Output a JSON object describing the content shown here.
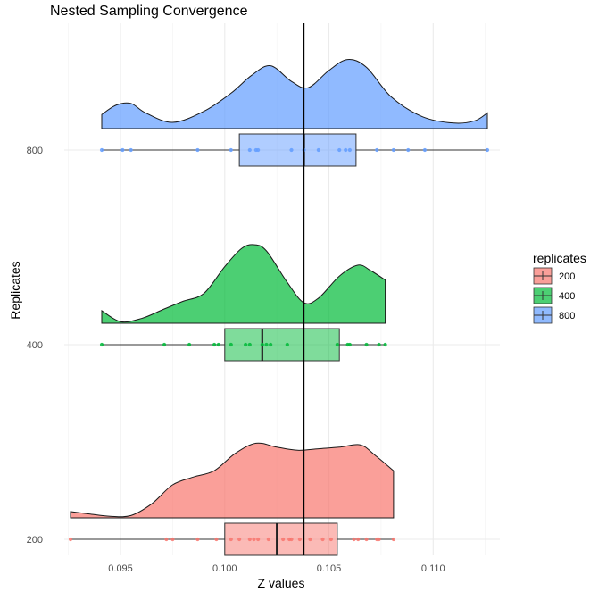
{
  "chart_data": {
    "type": "raincloud",
    "title": "Nested Sampling Convergence",
    "xlabel": "Z values",
    "ylabel": "Replicates",
    "xlim": [
      0.0923,
      0.1132
    ],
    "x_ticks": [
      0.095,
      0.1,
      0.105,
      0.11
    ],
    "x_tick_labels": [
      "0.095",
      "0.100",
      "0.105",
      "0.110"
    ],
    "categories": [
      "200",
      "400",
      "800"
    ],
    "reference_line_x": 0.1038,
    "grid": true,
    "legend": {
      "title": "replicates",
      "position": "right",
      "entries": [
        "200",
        "400",
        "800"
      ]
    },
    "colors": {
      "200": "#F8766D",
      "400": "#00BA38",
      "800": "#619CFF"
    },
    "series": [
      {
        "name": "200",
        "points": [
          0.0926,
          0.0972,
          0.0975,
          0.0987,
          0.0996,
          0.1003,
          0.1007,
          0.1012,
          0.1014,
          0.1016,
          0.1021,
          0.1028,
          0.1031,
          0.1032,
          0.1036,
          0.1041,
          0.1047,
          0.1051,
          0.1062,
          0.1064,
          0.1068,
          0.1073,
          0.1074,
          0.1081
        ],
        "box": {
          "min": 0.0926,
          "q1": 0.1,
          "median": 0.1025,
          "q3": 0.1054,
          "max": 0.1081
        },
        "density": {
          "x": [
            0.0926,
            0.0935,
            0.0945,
            0.0955,
            0.0965,
            0.0975,
            0.0985,
            0.0995,
            0.1005,
            0.1015,
            0.1025,
            0.1035,
            0.1045,
            0.1055,
            0.1065,
            0.1072,
            0.1081
          ],
          "y": [
            0.08,
            0.05,
            0.02,
            0.03,
            0.18,
            0.42,
            0.52,
            0.6,
            0.82,
            0.95,
            0.9,
            0.86,
            0.88,
            0.9,
            0.93,
            0.8,
            0.6
          ]
        }
      },
      {
        "name": "400",
        "points": [
          0.0941,
          0.0971,
          0.0983,
          0.0995,
          0.0997,
          0.1003,
          0.101,
          0.1012,
          0.1018,
          0.102,
          0.1022,
          0.103,
          0.1054,
          0.1059,
          0.106,
          0.1068,
          0.1074,
          0.1077
        ],
        "box": {
          "min": 0.0941,
          "q1": 0.1,
          "median": 0.1018,
          "q3": 0.1055,
          "max": 0.1077
        },
        "density": {
          "x": [
            0.0941,
            0.095,
            0.096,
            0.097,
            0.098,
            0.099,
            0.1,
            0.1008,
            0.1014,
            0.102,
            0.103,
            0.1038,
            0.1045,
            0.1055,
            0.1064,
            0.107,
            0.1077
          ],
          "y": [
            0.16,
            0.02,
            0.06,
            0.17,
            0.28,
            0.38,
            0.72,
            0.95,
            1.0,
            0.92,
            0.52,
            0.26,
            0.32,
            0.6,
            0.74,
            0.67,
            0.55
          ]
        }
      },
      {
        "name": "800",
        "points": [
          0.0941,
          0.0951,
          0.0955,
          0.0987,
          0.1003,
          0.1012,
          0.1015,
          0.1016,
          0.1032,
          0.1038,
          0.1045,
          0.1055,
          0.1058,
          0.106,
          0.1073,
          0.1081,
          0.1088,
          0.1096,
          0.1126
        ],
        "box": {
          "min": 0.0941,
          "q1": 0.1007,
          "median": 0.1038,
          "q3": 0.1063,
          "max": 0.1126
        },
        "density": {
          "x": [
            0.0941,
            0.0948,
            0.0955,
            0.0962,
            0.0975,
            0.099,
            0.1003,
            0.1013,
            0.1022,
            0.1032,
            0.104,
            0.105,
            0.1059,
            0.1068,
            0.108,
            0.1095,
            0.111,
            0.112,
            0.1126
          ],
          "y": [
            0.18,
            0.3,
            0.32,
            0.2,
            0.08,
            0.22,
            0.45,
            0.68,
            0.8,
            0.6,
            0.52,
            0.74,
            0.88,
            0.78,
            0.4,
            0.15,
            0.07,
            0.1,
            0.2
          ]
        }
      }
    ]
  }
}
